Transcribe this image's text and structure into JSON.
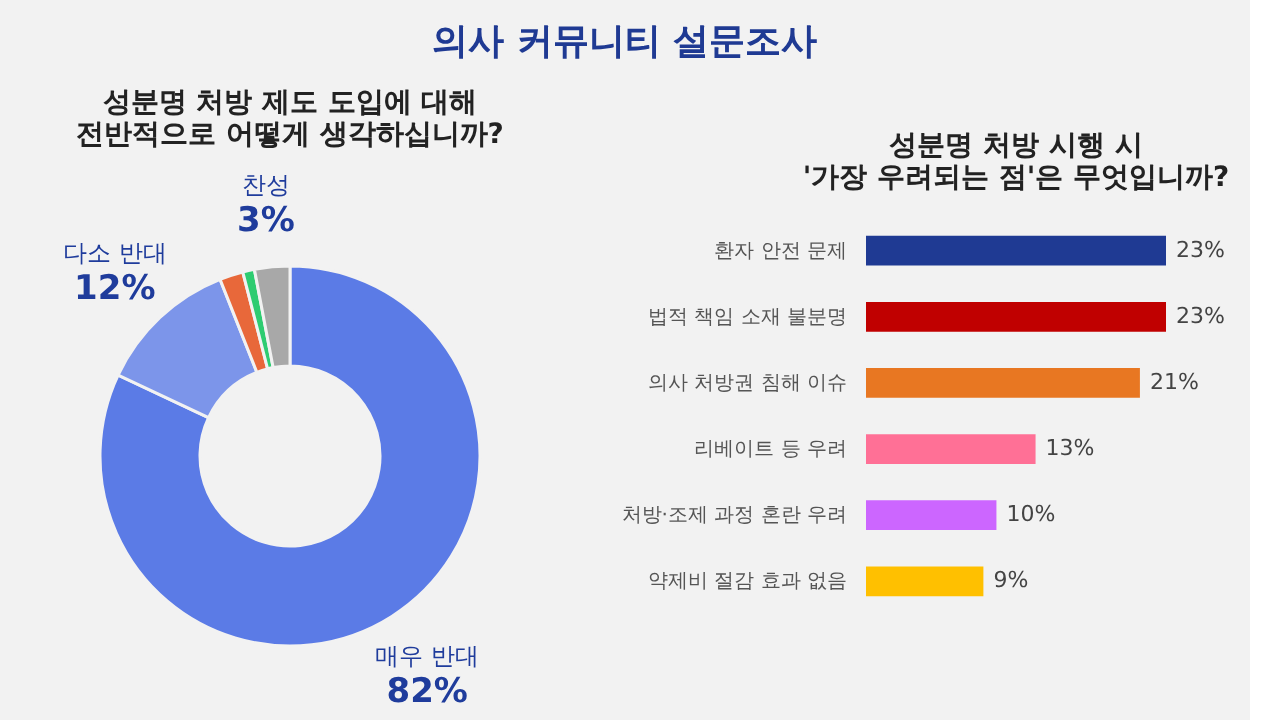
{
  "chart_data": [
    {
      "type": "donut",
      "title": "성분명 처방 제도 도입에 대해\n전반적으로 어떻게 생각하십니까?",
      "categories": [
        "매우 반대",
        "다소 반대",
        null,
        null,
        "찬성"
      ],
      "values": [
        82,
        12,
        2,
        1,
        3
      ],
      "colors": [
        "#5b7be6",
        "#7c95ea",
        "#e8683a",
        "#2ecc71",
        "#a8a8a8"
      ],
      "value_labels": [
        "82%",
        "12%",
        null,
        null,
        "3%"
      ],
      "annotations": [
        "의사 커뮤니티 설문조사"
      ]
    },
    {
      "type": "bar",
      "orientation": "horizontal",
      "title": "성분명 처방 시행 시\n'가장 우려되는 점'은 무엇입니까?",
      "categories": [
        "환자 안전 문제",
        "법적 책임 소재 불분명",
        "의사 처방권 침해 이슈",
        "리베이트 등 우려",
        "처방·조제 과정 혼란 우려",
        "약제비 절감 효과 없음"
      ],
      "values": [
        23,
        23,
        21,
        13,
        10,
        9
      ],
      "colors": [
        "#1f3a93",
        "#c00000",
        "#e87722",
        "#ff7096",
        "#cc66ff",
        "#ffc000"
      ],
      "value_labels": [
        "23%",
        "23%",
        "21%",
        "13%",
        "10%",
        "9%"
      ],
      "tick_labels": "y",
      "grid": false
    }
  ]
}
